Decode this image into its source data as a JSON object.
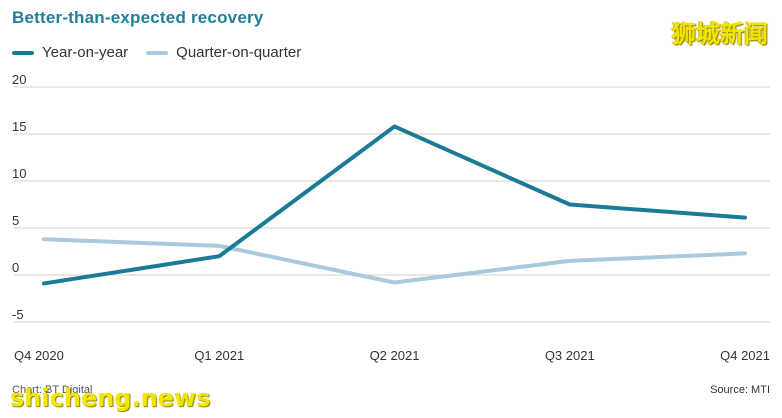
{
  "header": {
    "title": "Better-than-expected recovery"
  },
  "watermarks": {
    "top_right": "狮城新闻",
    "bottom_left": "shicheng.news"
  },
  "footer": {
    "credit": "Chart: BT Digital",
    "source": "Source: MTI"
  },
  "colors": {
    "yoy": "#1b7a95",
    "qoq": "#a9c9dc",
    "grid": "#cfcfcf"
  },
  "chart_data": {
    "type": "line",
    "title": "Better-than-expected recovery",
    "categories": [
      "Q4 2020",
      "Q1 2021",
      "Q2 2021",
      "Q3 2021",
      "Q4 2021"
    ],
    "series": [
      {
        "name": "Year-on-year",
        "values": [
          -0.9,
          2.0,
          15.8,
          7.5,
          6.1
        ]
      },
      {
        "name": "Quarter-on-quarter",
        "values": [
          3.8,
          3.1,
          -0.8,
          1.5,
          2.3
        ]
      }
    ],
    "ylim": [
      -5,
      20
    ],
    "yticks": [
      -5,
      0,
      5,
      10,
      15,
      20
    ],
    "grid": true,
    "legend": "top-left"
  }
}
